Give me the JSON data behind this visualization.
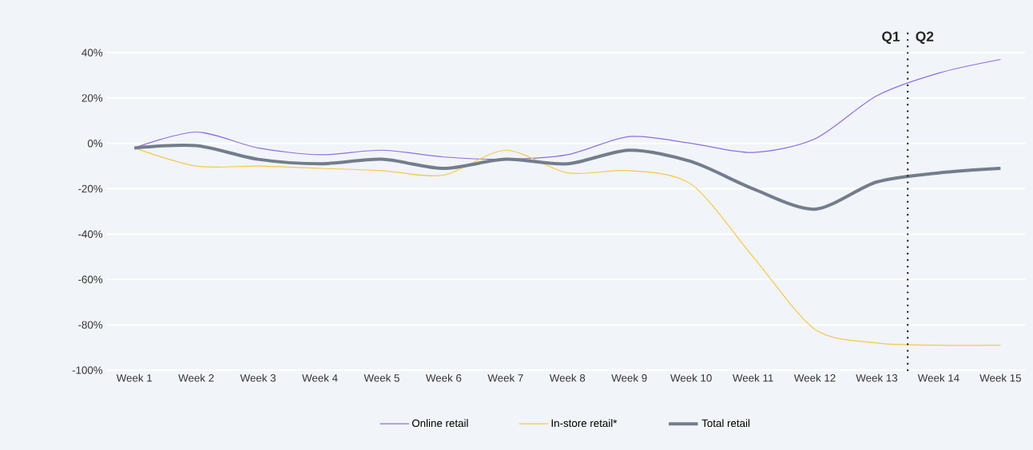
{
  "chart_data": {
    "type": "line",
    "categories": [
      "Week 1",
      "Week 2",
      "Week 3",
      "Week 4",
      "Week 5",
      "Week 6",
      "Week 7",
      "Week 8",
      "Week 9",
      "Week 10",
      "Week 11",
      "Week 12",
      "Week 13",
      "Week 14",
      "Week 15"
    ],
    "series": [
      {
        "name": "Online retail",
        "color": "#8c6fe0",
        "values": [
          -2,
          5,
          -2,
          -5,
          -3,
          -6,
          -7,
          -5,
          3,
          0,
          -4,
          2,
          21,
          31,
          37
        ]
      },
      {
        "name": "In-store retail*",
        "color": "#f5c84c",
        "values": [
          -2,
          -10,
          -10,
          -11,
          -12,
          -14,
          -3,
          -13,
          -12,
          -18,
          -50,
          -82,
          -88,
          -89,
          -89
        ]
      },
      {
        "name": "Total retail",
        "color": "#737d8c",
        "values": [
          -2,
          -1,
          -7,
          -9,
          -7,
          -11,
          -7,
          -9,
          -3,
          -8,
          -20,
          -29,
          -17,
          -13,
          -11
        ]
      }
    ],
    "ylim": [
      -100,
      40
    ],
    "yticks": [
      {
        "value": 40,
        "label": "40%"
      },
      {
        "value": 20,
        "label": "20%"
      },
      {
        "value": 0,
        "label": "0%"
      },
      {
        "value": -20,
        "label": "-20%"
      },
      {
        "value": -40,
        "label": "-40%"
      },
      {
        "value": -60,
        "label": "-60%"
      },
      {
        "value": -80,
        "label": "-80%"
      },
      {
        "value": -100,
        "label": "-100%"
      }
    ],
    "annotations": [
      "Q1",
      "Q2"
    ],
    "grid": "y",
    "legend": "bottom",
    "marker": "none",
    "line_style": "solid"
  }
}
